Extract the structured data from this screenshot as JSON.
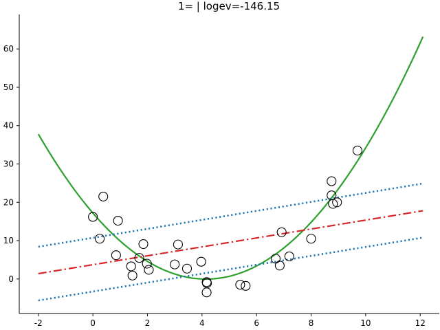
{
  "chart_data": {
    "type": "scatter",
    "title": "1= | logev=-146.15",
    "xlabel": "",
    "ylabel": "",
    "xlim": [
      -2.7,
      12.7
    ],
    "ylim": [
      -9,
      69
    ],
    "xticks": [
      -2,
      0,
      2,
      4,
      6,
      8,
      10,
      12
    ],
    "yticks": [
      0,
      10,
      20,
      30,
      40,
      50,
      60
    ],
    "grid": false,
    "spines": [
      "left",
      "bottom"
    ],
    "points": [
      {
        "x": 0.0,
        "y": 16.2
      },
      {
        "x": 0.25,
        "y": 10.5
      },
      {
        "x": 0.38,
        "y": 21.5
      },
      {
        "x": 0.85,
        "y": 6.2
      },
      {
        "x": 0.92,
        "y": 15.2
      },
      {
        "x": 1.4,
        "y": 3.3
      },
      {
        "x": 1.45,
        "y": 0.9
      },
      {
        "x": 1.7,
        "y": 5.5
      },
      {
        "x": 1.85,
        "y": 9.1
      },
      {
        "x": 1.98,
        "y": 4.0
      },
      {
        "x": 2.05,
        "y": 2.4
      },
      {
        "x": 3.0,
        "y": 3.8
      },
      {
        "x": 3.12,
        "y": 9.0
      },
      {
        "x": 3.45,
        "y": 2.7
      },
      {
        "x": 3.97,
        "y": 4.5
      },
      {
        "x": 4.17,
        "y": -0.8
      },
      {
        "x": 4.18,
        "y": -1.1
      },
      {
        "x": 4.17,
        "y": -3.5
      },
      {
        "x": 5.4,
        "y": -1.5
      },
      {
        "x": 5.6,
        "y": -1.8
      },
      {
        "x": 6.7,
        "y": 5.3
      },
      {
        "x": 6.85,
        "y": 3.5
      },
      {
        "x": 6.92,
        "y": 12.2
      },
      {
        "x": 7.2,
        "y": 5.9
      },
      {
        "x": 8.0,
        "y": 10.5
      },
      {
        "x": 8.75,
        "y": 25.5
      },
      {
        "x": 8.75,
        "y": 21.8
      },
      {
        "x": 8.8,
        "y": 19.6
      },
      {
        "x": 8.95,
        "y": 20.0
      },
      {
        "x": 9.7,
        "y": 33.5
      }
    ],
    "lines": [
      {
        "style": "solid",
        "color": "#2ca02c",
        "curve": "quadratic",
        "coef": [
          1.0,
          -8.3,
          17.2
        ],
        "x_range": [
          -2,
          12.1
        ]
      },
      {
        "style": "dashdot",
        "color": "#d62728",
        "curve": "linear",
        "x": [
          -2,
          12.1
        ],
        "y": [
          1.4,
          17.8
        ]
      },
      {
        "style": "dotted",
        "color": "#1f77b4",
        "curve": "linear",
        "x": [
          -2,
          12.1
        ],
        "y": [
          8.4,
          24.9
        ]
      },
      {
        "style": "dotted",
        "color": "#1f77b4",
        "curve": "linear",
        "x": [
          -2,
          12.1
        ],
        "y": [
          -5.6,
          10.8
        ]
      }
    ],
    "marker": {
      "shape": "open-circle",
      "color": "#000000"
    }
  }
}
